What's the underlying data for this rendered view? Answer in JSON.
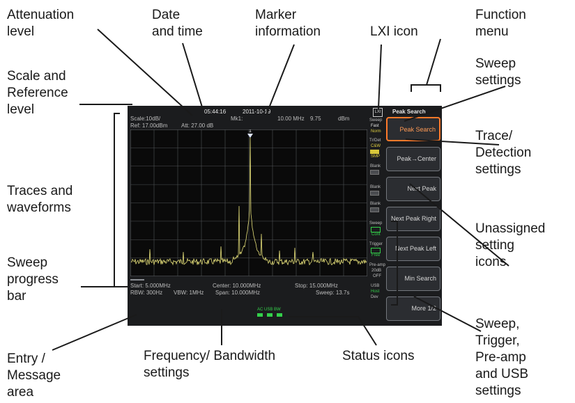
{
  "callouts": {
    "attenuation": [
      "Attenuation",
      "level"
    ],
    "date_time": [
      "Date",
      "and time"
    ],
    "marker": [
      "Marker",
      "information"
    ],
    "lxi": [
      "LXI icon"
    ],
    "function_menu": [
      "Function",
      "menu"
    ],
    "scale_ref": [
      "Scale and",
      "Reference",
      "level"
    ],
    "sweep_settings": [
      "Sweep",
      "settings"
    ],
    "trace_detection": [
      "Trace/",
      "Detection",
      "settings"
    ],
    "traces": [
      "Traces and",
      "waveforms"
    ],
    "unassigned": [
      "Unassigned",
      "setting",
      "icons"
    ],
    "sweep_progress": [
      "Sweep",
      "progress",
      "bar"
    ],
    "sweep_trigger": [
      "Sweep,",
      "Trigger,",
      "Pre-amp",
      "and USB",
      "settings"
    ],
    "entry_message": [
      "Entry /",
      "Message",
      "area"
    ],
    "freq_bw": [
      "Frequency/ Bandwidth",
      "settings"
    ],
    "status_icons": [
      "Status icons"
    ]
  },
  "screen": {
    "time": "05:44:16",
    "date": "2011-10-19",
    "scale": "Scale:10dB/",
    "ref": "Ref: 17.00dBm",
    "att": "Att: 27.00 dB",
    "marker_name": "Mk1:",
    "marker_freq": "10.00 MHz",
    "marker_level": "9.75",
    "marker_unit": "dBm",
    "marker_tag": "1",
    "menu_title": "Peak Search",
    "buttons": [
      "Peak Search",
      "Peak→Center",
      "Next Peak",
      "Next Peak Right",
      "Next Peak Left",
      "Min Search",
      "More 1/2"
    ],
    "side": {
      "sweep_label": "Sweep",
      "sweep_fast": "Fast",
      "sweep_norm": "Norm",
      "trdet_label": "Tr/Det",
      "trdet_clw": "C&W",
      "trdet_smp": "SMP",
      "blank1": "Blank",
      "blank2": "Blank",
      "blank3": "Blank",
      "sweep2_label": "Sweep",
      "sweep2_val": "Cont",
      "trigger_label": "Trigger",
      "trigger_val": "Free",
      "preamp_label": "Pre-amp",
      "preamp_val1": "20dB",
      "preamp_val2": "OFF",
      "usb_label": "USB",
      "usb_val1": "Host",
      "usb_val2": "Dev"
    },
    "start": "Start: 5.000MHz",
    "center": "Center: 10.000MHz",
    "stop": "Stop: 15.000MHz",
    "rbw": "RBW: 300Hz",
    "vbw": "VBW: 1MHz",
    "span": "Span: 10.000MHz",
    "sweep_time": "Sweep: 13.7s",
    "status_top": "AC  USB  BW",
    "colors": {
      "background": "#1b1c1e",
      "grid": "#505357",
      "trace": "#e6e07a",
      "accent": "#ff7a2a",
      "status": "#33d04a"
    }
  }
}
